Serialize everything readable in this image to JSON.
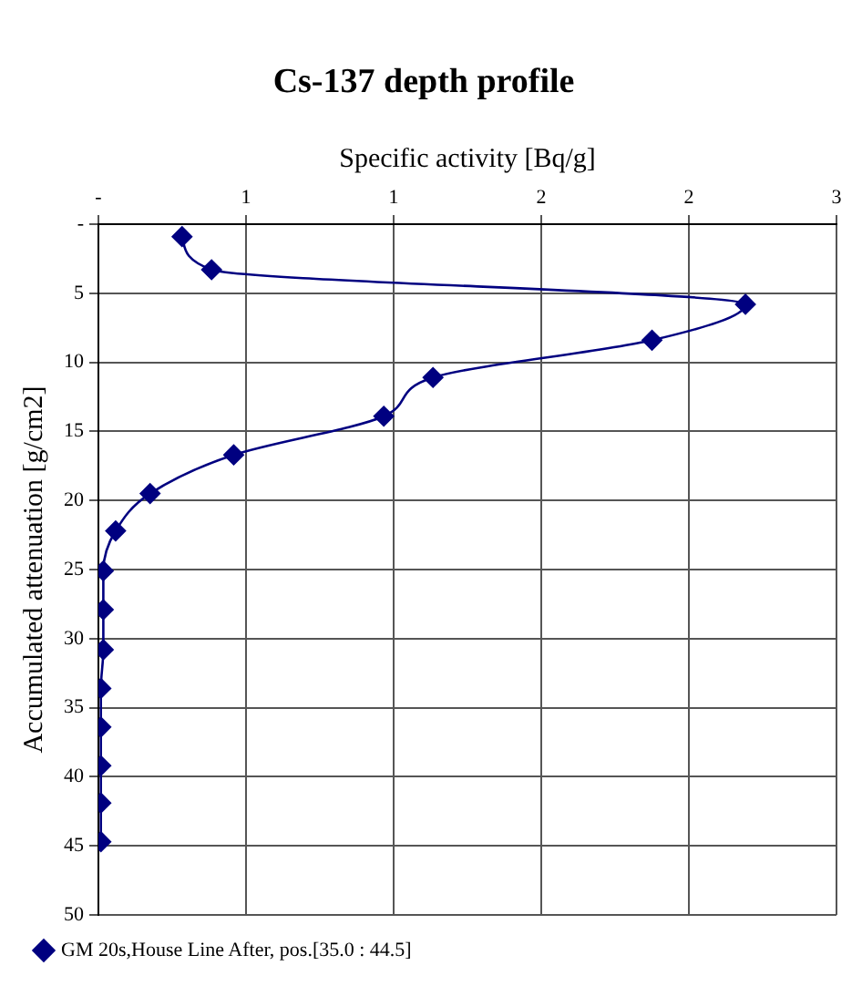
{
  "chart_data": {
    "type": "line",
    "title": "Cs-137 depth profile",
    "xlabel": "Specific activity [Bq/g]",
    "ylabel": "Accumulated attenuation [g/cm2]",
    "series": [
      {
        "name": "GM 20s,House Line After, pos.[35.0 : 44.5]",
        "color": "#000080",
        "x": [
          0.34,
          0.46,
          2.63,
          2.25,
          1.36,
          1.16,
          0.55,
          0.21,
          0.07,
          0.02,
          0.02,
          0.02,
          0.01,
          0.01,
          0.01,
          0.01,
          0.01
        ],
        "values": [
          0.9,
          3.3,
          5.8,
          8.4,
          11.1,
          13.9,
          16.7,
          19.5,
          22.2,
          25.1,
          27.9,
          30.8,
          33.6,
          36.4,
          39.2,
          41.9,
          44.7
        ]
      }
    ],
    "xlim": [
      0,
      3
    ],
    "xticks": [
      {
        "value": 0,
        "label": "-"
      },
      {
        "value": 0.6,
        "label": "1"
      },
      {
        "value": 1.2,
        "label": "1"
      },
      {
        "value": 1.8,
        "label": "2"
      },
      {
        "value": 2.4,
        "label": "2"
      },
      {
        "value": 3,
        "label": "3"
      }
    ],
    "ylim": [
      50,
      0
    ],
    "yticks": [
      {
        "value": 0,
        "label": "-"
      },
      5,
      10,
      15,
      20,
      25,
      30,
      35,
      40,
      45,
      50
    ],
    "grid": true,
    "legend": "bottom",
    "marker": "diamond",
    "line_style": "solid"
  }
}
